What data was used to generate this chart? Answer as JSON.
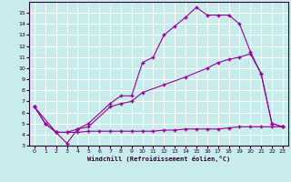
{
  "background_color": "#c8ecec",
  "grid_color": "#ffffff",
  "line_color": "#990099",
  "marker": "+",
  "xlabel": "Windchill (Refroidissement éolien,°C)",
  "xlim": [
    -0.5,
    23.5
  ],
  "ylim": [
    3,
    16
  ],
  "xticks": [
    0,
    1,
    2,
    3,
    4,
    5,
    6,
    7,
    8,
    9,
    10,
    11,
    12,
    13,
    14,
    15,
    16,
    17,
    18,
    19,
    20,
    21,
    22,
    23
  ],
  "yticks": [
    3,
    4,
    5,
    6,
    7,
    8,
    9,
    10,
    11,
    12,
    13,
    14,
    15
  ],
  "line1_x": [
    0,
    1,
    2,
    3,
    4,
    5,
    6,
    7,
    8,
    9,
    10,
    11,
    12,
    13,
    14,
    15,
    16,
    17,
    18,
    19,
    20,
    21,
    22,
    23
  ],
  "line1_y": [
    6.5,
    5.0,
    4.2,
    4.2,
    4.2,
    4.3,
    4.3,
    4.3,
    4.3,
    4.3,
    4.3,
    4.3,
    4.4,
    4.4,
    4.5,
    4.5,
    4.5,
    4.5,
    4.6,
    4.7,
    4.7,
    4.7,
    4.7,
    4.7
  ],
  "line2_x": [
    0,
    2,
    3,
    4,
    5,
    7,
    8,
    9,
    10,
    12,
    14,
    16,
    17,
    18,
    19,
    20,
    21,
    22,
    23
  ],
  "line2_y": [
    6.5,
    4.2,
    4.2,
    4.5,
    4.7,
    6.5,
    6.8,
    7.0,
    7.8,
    8.5,
    9.2,
    10.0,
    10.5,
    10.8,
    11.0,
    11.3,
    9.5,
    5.0,
    4.7
  ],
  "line3_x": [
    0,
    1,
    2,
    3,
    4,
    5,
    7,
    8,
    9,
    10,
    11,
    12,
    13,
    14,
    15,
    16,
    17,
    18,
    19,
    20,
    21,
    22,
    23
  ],
  "line3_y": [
    6.5,
    5.0,
    4.2,
    3.2,
    4.5,
    5.0,
    6.8,
    7.5,
    7.5,
    10.5,
    11.0,
    13.0,
    13.8,
    14.6,
    15.5,
    14.8,
    14.8,
    14.8,
    14.0,
    11.5,
    9.5,
    5.0,
    4.7
  ]
}
